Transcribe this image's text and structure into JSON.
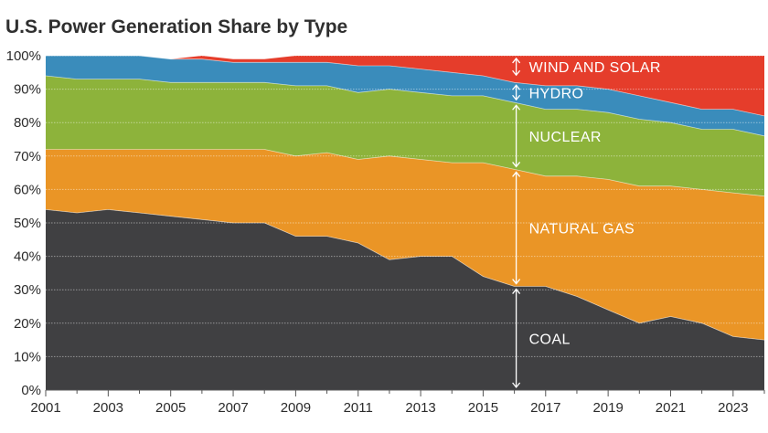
{
  "chart_data": {
    "type": "area",
    "stacked": true,
    "title": "U.S. Power Generation Share by Type",
    "xlabel": "",
    "ylabel": "",
    "ylim": [
      0,
      100
    ],
    "x": [
      2001,
      2002,
      2003,
      2004,
      2005,
      2006,
      2007,
      2008,
      2009,
      2010,
      2011,
      2012,
      2013,
      2014,
      2015,
      2016,
      2017,
      2018,
      2019,
      2020,
      2021,
      2022,
      2023,
      2024
    ],
    "x_tick_labels": [
      "2001",
      "2003",
      "2005",
      "2007",
      "2009",
      "2011",
      "2013",
      "2015",
      "2017",
      "2019",
      "2021",
      "2023"
    ],
    "y_tick_labels": [
      "0%",
      "10%",
      "20%",
      "30%",
      "40%",
      "50%",
      "60%",
      "70%",
      "80%",
      "90%",
      "100%"
    ],
    "series": [
      {
        "name": "COAL",
        "color": "#404042",
        "values": [
          54,
          53,
          54,
          53,
          52,
          51,
          50,
          50,
          46,
          46,
          44,
          39,
          40,
          40,
          34,
          31,
          31,
          28,
          24,
          20,
          22,
          20,
          16,
          15
        ]
      },
      {
        "name": "NATURAL GAS",
        "color": "#ea9526",
        "values": [
          18,
          19,
          18,
          19,
          20,
          21,
          22,
          22,
          24,
          25,
          25,
          31,
          29,
          28,
          34,
          35,
          33,
          36,
          39,
          41,
          39,
          40,
          43,
          43
        ]
      },
      {
        "name": "NUCLEAR",
        "color": "#8db33b",
        "values": [
          22,
          21,
          21,
          21,
          20,
          20,
          20,
          20,
          21,
          20,
          20,
          20,
          20,
          20,
          20,
          20,
          20,
          20,
          20,
          20,
          19,
          18,
          19,
          18
        ]
      },
      {
        "name": "HYDRO",
        "color": "#3a8cbb",
        "values": [
          6,
          7,
          7,
          7,
          7,
          7,
          6,
          6,
          7,
          7,
          8,
          7,
          7,
          7,
          6,
          6,
          7,
          7,
          7,
          7,
          6,
          6,
          6,
          6
        ]
      },
      {
        "name": "WIND AND SOLAR",
        "color": "#e53d2b",
        "values": [
          0,
          0,
          0,
          0,
          0,
          1,
          1,
          1,
          2,
          2,
          3,
          3,
          4,
          5,
          6,
          8,
          9,
          9,
          10,
          12,
          14,
          16,
          16,
          18
        ]
      }
    ],
    "annotations": [
      {
        "label": "WIND AND SOLAR",
        "series": "WIND AND SOLAR"
      },
      {
        "label": "HYDRO",
        "series": "HYDRO"
      },
      {
        "label": "NUCLEAR",
        "series": "NUCLEAR"
      },
      {
        "label": "NATURAL GAS",
        "series": "NATURAL GAS"
      },
      {
        "label": "COAL",
        "series": "COAL"
      }
    ],
    "grid": true,
    "legend": "inline",
    "annotation_x": 2016,
    "arrow_color": "#ffffff",
    "grid_color": "#ffffff"
  }
}
